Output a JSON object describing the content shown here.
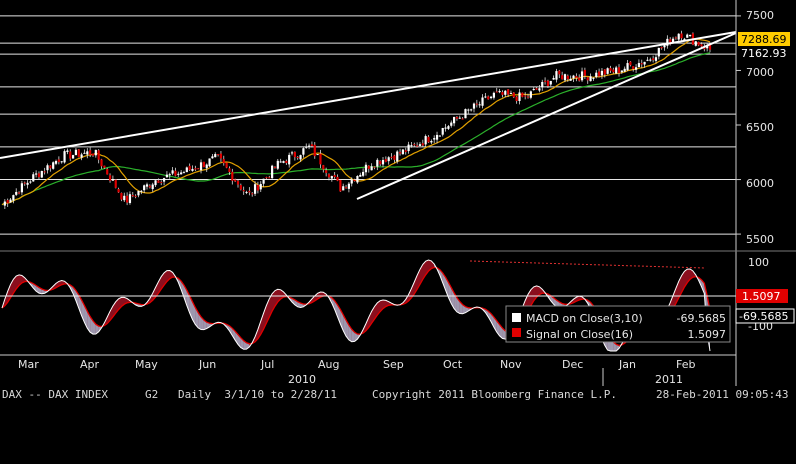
{
  "chart_data": [
    {
      "type": "candlestick",
      "title": "DAX -- DAX INDEX",
      "y_ticks": [
        5500,
        6000,
        6500,
        7000,
        7500
      ],
      "ylim": [
        5400,
        7600
      ],
      "price_labels": {
        "last_close": "7288.69",
        "current": "7162.93"
      },
      "series": [
        {
          "name": "Price (daily candles)",
          "color": "#ffffff"
        },
        {
          "name": "Short moving average",
          "color": "#e1a000"
        },
        {
          "name": "Long moving average",
          "color": "#2bb02b"
        }
      ],
      "price_points": [
        {
          "month": "Mar",
          "close": 5770
        },
        {
          "month": "Mar",
          "close": 6020
        },
        {
          "month": "Apr",
          "close": 6220
        },
        {
          "month": "Apr",
          "close": 6250
        },
        {
          "month": "May",
          "close": 5800
        },
        {
          "month": "May",
          "close": 6000
        },
        {
          "month": "Jun",
          "close": 6080
        },
        {
          "month": "Jun",
          "close": 6200
        },
        {
          "month": "Jul",
          "close": 5850
        },
        {
          "month": "Jul",
          "close": 6150
        },
        {
          "month": "Aug",
          "close": 6300
        },
        {
          "month": "Aug",
          "close": 5920
        },
        {
          "month": "Sep",
          "close": 6150
        },
        {
          "month": "Sep",
          "close": 6250
        },
        {
          "month": "Oct",
          "close": 6400
        },
        {
          "month": "Oct",
          "close": 6600
        },
        {
          "month": "Nov",
          "close": 6780
        },
        {
          "month": "Nov",
          "close": 6750
        },
        {
          "month": "Dec",
          "close": 6950
        },
        {
          "month": "Dec",
          "close": 6950
        },
        {
          "month": "Jan",
          "close": 7000
        },
        {
          "month": "Jan",
          "close": 7100
        },
        {
          "month": "Feb",
          "close": 7350
        },
        {
          "month": "Feb",
          "close": 7190
        }
      ],
      "horizontal_lines": [
        7500,
        7250,
        7150,
        6850,
        6600,
        6300,
        6000,
        5500
      ]
    },
    {
      "type": "area",
      "title": "MACD",
      "y_ticks_upper": [
        "100"
      ],
      "y_ticks_lower": [
        "-100"
      ],
      "series": [
        {
          "name": "MACD on Close(3,10)",
          "value": "-69.5685",
          "color": "#ffffff"
        },
        {
          "name": "Signal on Close(16)",
          "value": "1.5097",
          "color": "#e00000"
        }
      ],
      "value_tags": {
        "signal": "1.5097",
        "macd": "-69.5685"
      }
    }
  ],
  "x_axis": {
    "months": [
      "Mar",
      "Apr",
      "May",
      "Jun",
      "Jul",
      "Aug",
      "Sep",
      "Oct",
      "Nov",
      "Dec",
      "Jan",
      "Feb"
    ],
    "years": [
      "2010",
      "2011"
    ]
  },
  "footer": {
    "ticker": "DAX -- DAX INDEX",
    "page": "G2",
    "period": "Daily  3/1/10 to 2/28/11",
    "copyright": "Copyright 2011 Bloomberg Finance L.P.",
    "timestamp": "28-Feb-2011 09:05:43"
  }
}
